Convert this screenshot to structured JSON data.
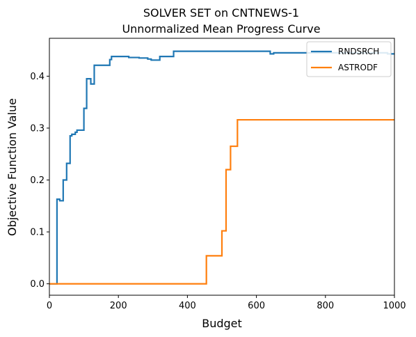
{
  "chart_data": {
    "type": "line",
    "title": "SOLVER SET on CNTNEWS-1",
    "subtitle": "Unnormalized Mean Progress Curve",
    "xlabel": "Budget",
    "ylabel": "Objective Function Value",
    "xlim": [
      0,
      1000
    ],
    "ylim": [
      -0.022,
      0.473
    ],
    "x_ticks": [
      0,
      200,
      400,
      600,
      800,
      1000
    ],
    "y_ticks": [
      0.0,
      0.1,
      0.2,
      0.3,
      0.4
    ],
    "x_tick_labels": [
      "0",
      "200",
      "400",
      "600",
      "800",
      "1000"
    ],
    "y_tick_labels": [
      "0.0",
      "0.1",
      "0.2",
      "0.3",
      "0.4"
    ],
    "grid": false,
    "legend": {
      "position": "top-right"
    },
    "step": "post",
    "series": [
      {
        "name": "RNDSRCH",
        "color": "#1f77b4",
        "x": [
          0,
          20,
          22,
          30,
          40,
          50,
          60,
          65,
          75,
          80,
          100,
          108,
          120,
          130,
          175,
          180,
          230,
          260,
          285,
          295,
          320,
          360,
          400,
          640,
          650,
          700,
          750,
          800,
          850,
          900,
          950,
          980,
          1000
        ],
        "y": [
          0.0,
          0.0,
          0.163,
          0.16,
          0.2,
          0.232,
          0.285,
          0.288,
          0.292,
          0.296,
          0.338,
          0.395,
          0.385,
          0.421,
          0.432,
          0.438,
          0.436,
          0.435,
          0.433,
          0.431,
          0.438,
          0.448,
          0.448,
          0.443,
          0.445,
          0.445,
          0.445,
          0.445,
          0.445,
          0.445,
          0.445,
          0.443,
          0.443
        ]
      },
      {
        "name": "ASTRODF",
        "color": "#ff7f0e",
        "x": [
          0,
          455,
          500,
          512,
          525,
          545,
          1000
        ],
        "y": [
          0.0,
          0.054,
          0.102,
          0.22,
          0.265,
          0.316,
          0.316
        ]
      }
    ]
  }
}
